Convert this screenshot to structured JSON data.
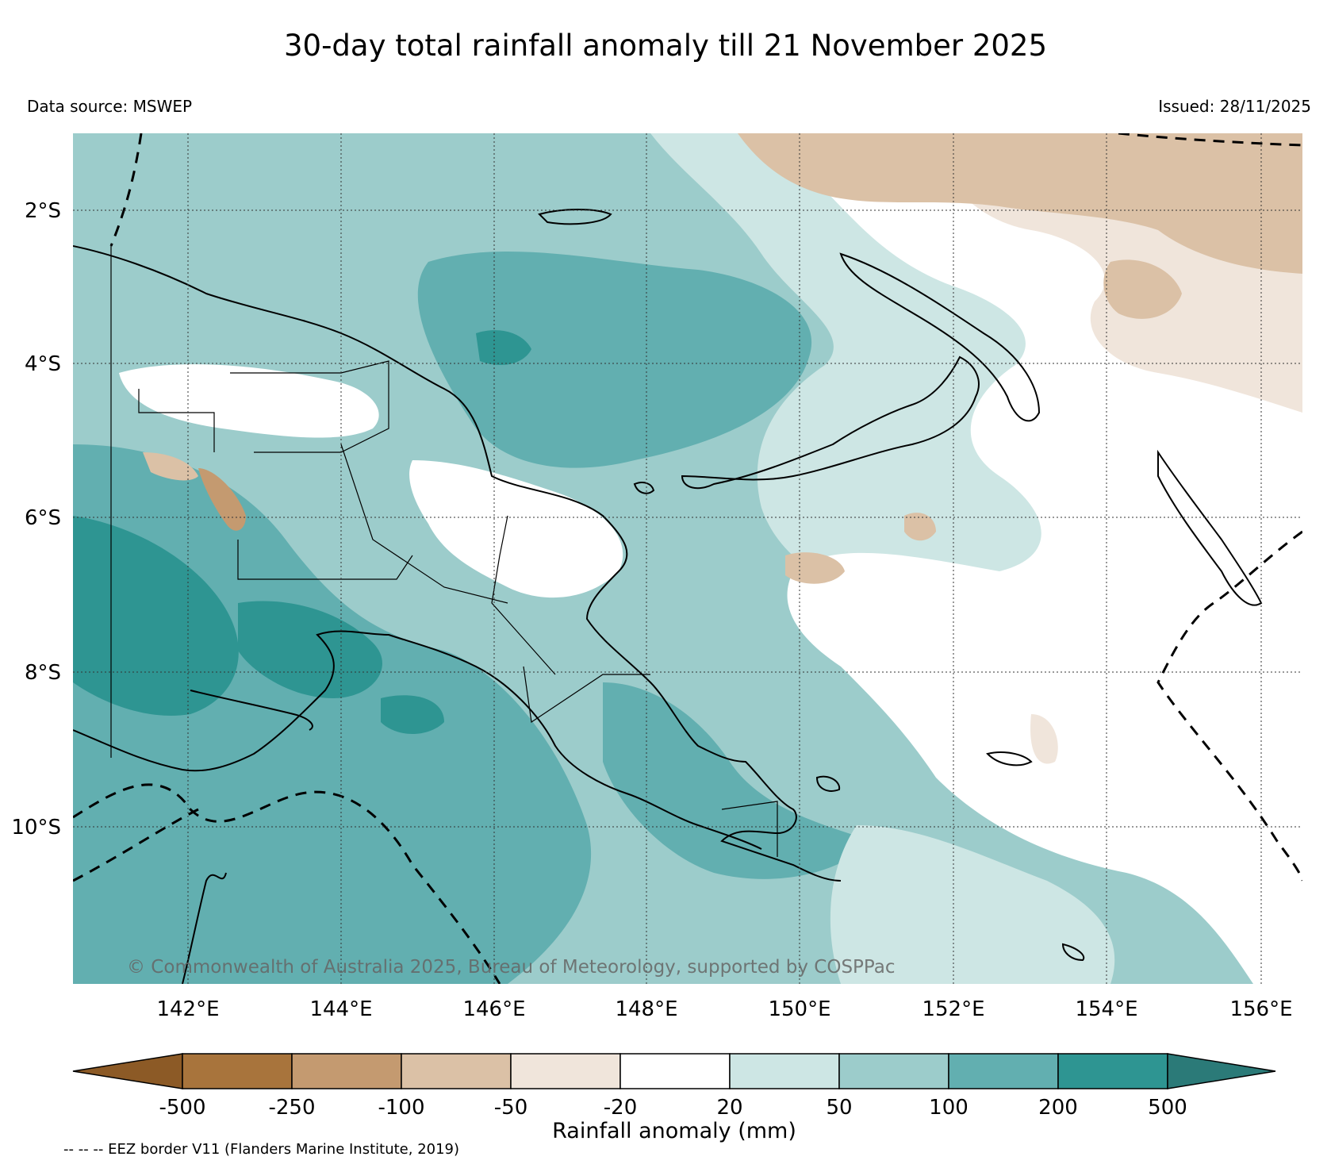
{
  "title": "30-day total rainfall anomaly till 21 November 2025",
  "data_source": "Data source: MSWEP",
  "issued": "Issued: 28/11/2025",
  "copyright": "© Commonwealth of Australia 2025, Bureau of Meteorology, supported by COSPPac",
  "footnote": "-- -- -- EEZ border V11 (Flanders Marine Institute, 2019)",
  "map": {
    "lon_range": [
      140.4,
      156.5
    ],
    "lat_range": [
      -12.2,
      -1.0
    ],
    "lon_ticks": [
      142,
      144,
      146,
      148,
      150,
      152,
      154,
      156
    ],
    "lat_ticks": [
      -2,
      -4,
      -6,
      -8,
      -10
    ],
    "lon_labels": [
      "142°E",
      "144°E",
      "146°E",
      "148°E",
      "150°E",
      "152°E",
      "154°E",
      "156°E"
    ],
    "lat_labels": [
      "2°S",
      "4°S",
      "6°S",
      "8°S",
      "10°S"
    ]
  },
  "colorbar": {
    "label": "Rainfall anomaly (mm)",
    "tick_labels": [
      "-500",
      "-250",
      "-100",
      "-50",
      "-20",
      "20",
      "50",
      "100",
      "200",
      "500"
    ],
    "colors": [
      "#8c5a26",
      "#a8743c",
      "#c49a70",
      "#dbc1a6",
      "#f0e5db",
      "#ffffff",
      "#cde6e4",
      "#9ccccb",
      "#62afb0",
      "#2e9592",
      "#2b7a78"
    ]
  }
}
